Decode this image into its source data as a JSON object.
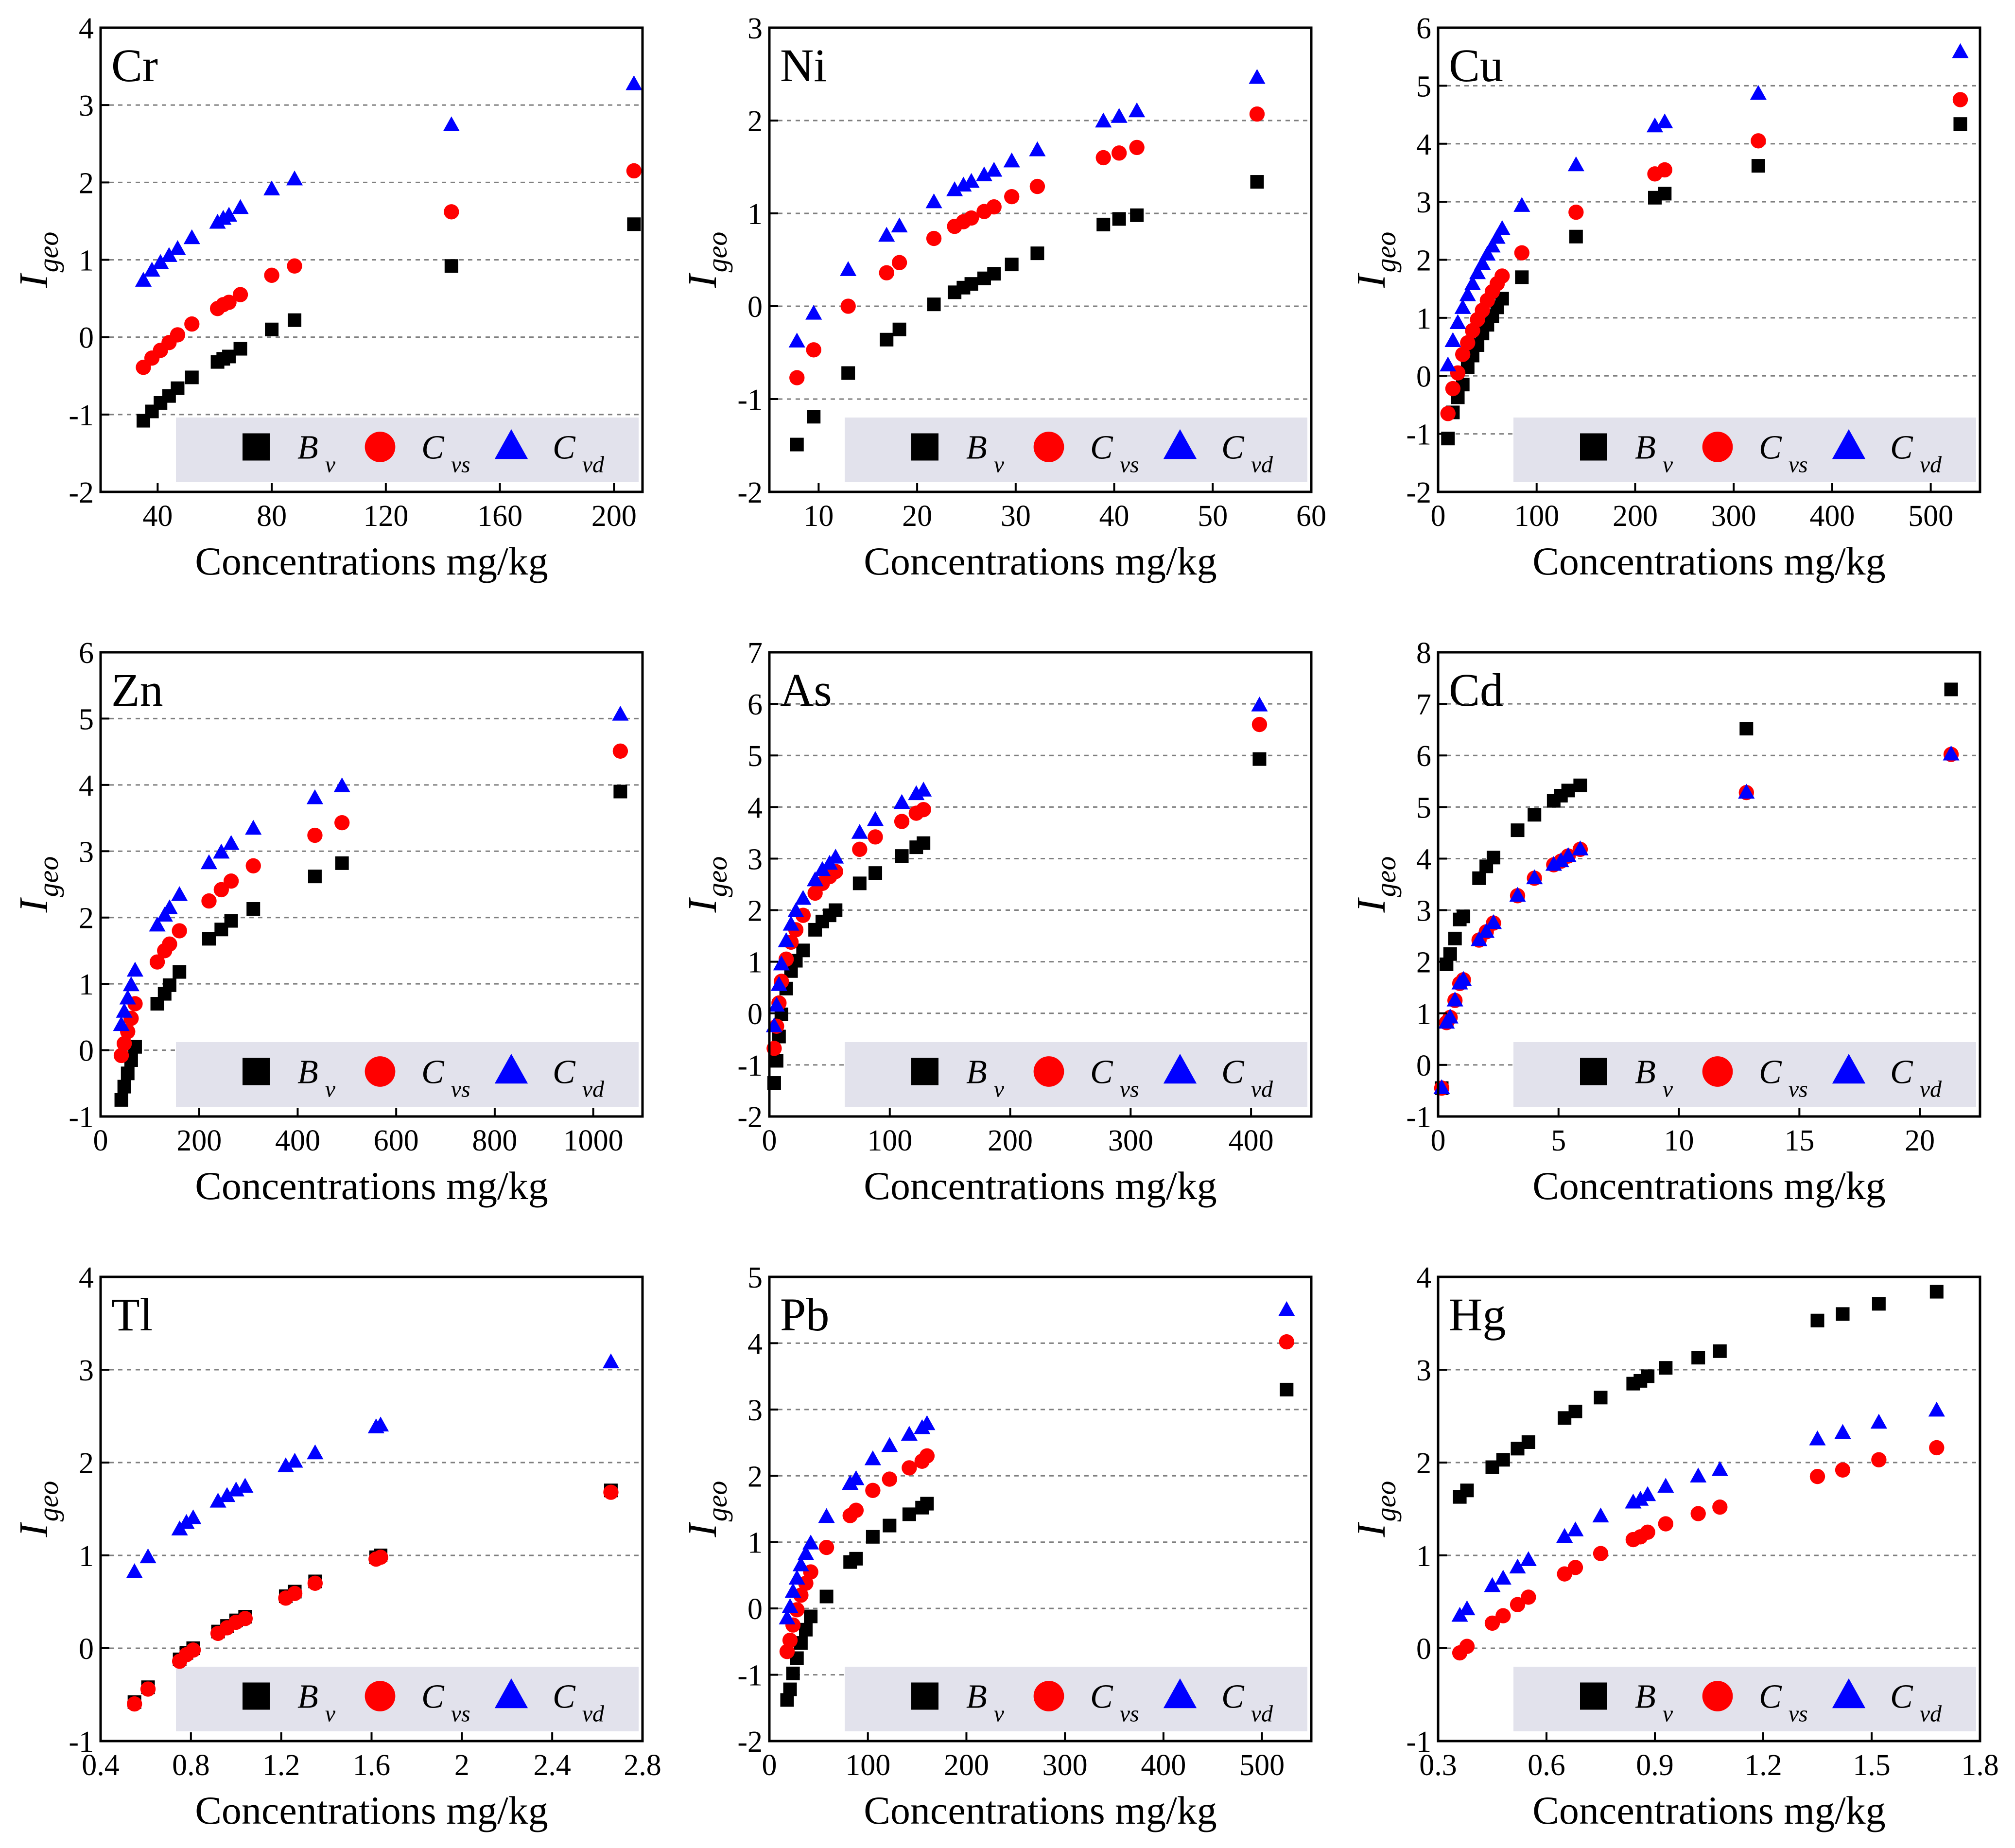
{
  "figure": {
    "xlabel": "Concentrations mg/kg",
    "ylabel": "I",
    "ylabel_sub": "geo"
  },
  "colors": {
    "Bv": "#000000",
    "Cvs": "#ff0000",
    "Cvd": "#0000ff",
    "legend_bg": "#e2e2ec",
    "grid": "#7f7f7f"
  },
  "chart_data": [
    {
      "type": "scatter",
      "title": "Cr",
      "xlabel": "Concentrations mg/kg",
      "ylabel": "I geo",
      "xlim": [
        20,
        210
      ],
      "ylim": [
        -2,
        4
      ],
      "xticks": [
        40,
        80,
        120,
        160,
        200
      ],
      "yticks": [
        -2,
        -1,
        0,
        1,
        2,
        3,
        4
      ],
      "grid": "y",
      "legend": [
        {
          "main": "B",
          "sub": "v"
        },
        {
          "main": "C",
          "sub": "vs"
        },
        {
          "main": "C",
          "sub": "vd"
        }
      ],
      "x": [
        35,
        38,
        41,
        44,
        47,
        52,
        61,
        63,
        65,
        69,
        80,
        88,
        143,
        207
      ],
      "series": [
        {
          "name": "Bv",
          "values": [
            -1.08,
            -0.96,
            -0.85,
            -0.76,
            -0.66,
            -0.52,
            -0.32,
            -0.28,
            -0.25,
            -0.15,
            0.1,
            0.22,
            0.92,
            1.46
          ]
        },
        {
          "name": "Cvs",
          "values": [
            -0.39,
            -0.27,
            -0.17,
            -0.07,
            0.03,
            0.17,
            0.37,
            0.42,
            0.45,
            0.55,
            0.8,
            0.92,
            1.62,
            2.15
          ]
        },
        {
          "name": "Cvd",
          "values": [
            0.73,
            0.86,
            0.96,
            1.05,
            1.14,
            1.28,
            1.48,
            1.53,
            1.57,
            1.67,
            1.91,
            2.04,
            2.74,
            3.27
          ]
        }
      ]
    },
    {
      "type": "scatter",
      "title": "Ni",
      "xlabel": "Concentrations mg/kg",
      "ylabel": "I geo",
      "xlim": [
        5,
        60
      ],
      "ylim": [
        -2,
        3
      ],
      "xticks": [
        10,
        20,
        30,
        40,
        50,
        60
      ],
      "yticks": [
        -2,
        -1,
        0,
        1,
        2,
        3
      ],
      "grid": "y",
      "legend": [
        {
          "main": "B",
          "sub": "v"
        },
        {
          "main": "C",
          "sub": "vs"
        },
        {
          "main": "C",
          "sub": "vd"
        }
      ],
      "x": [
        7.8,
        9.5,
        13,
        16.9,
        18.2,
        21.7,
        23.8,
        24.7,
        25.5,
        26.8,
        27.8,
        29.6,
        32.2,
        38.9,
        40.5,
        42.3,
        54.5
      ],
      "series": [
        {
          "name": "Bv",
          "values": [
            -1.49,
            -1.19,
            -0.72,
            -0.36,
            -0.25,
            0.02,
            0.15,
            0.2,
            0.24,
            0.3,
            0.35,
            0.45,
            0.57,
            0.88,
            0.94,
            0.98,
            1.34
          ]
        },
        {
          "name": "Cvs",
          "values": [
            -0.77,
            -0.47,
            0.0,
            0.36,
            0.47,
            0.73,
            0.86,
            0.91,
            0.95,
            1.02,
            1.07,
            1.18,
            1.29,
            1.6,
            1.65,
            1.71,
            2.07
          ]
        },
        {
          "name": "Cvd",
          "values": [
            -0.38,
            -0.08,
            0.39,
            0.76,
            0.86,
            1.12,
            1.25,
            1.3,
            1.34,
            1.41,
            1.46,
            1.56,
            1.68,
            1.99,
            2.04,
            2.1,
            2.46
          ]
        }
      ]
    },
    {
      "type": "scatter",
      "title": "Cu",
      "xlabel": "Concentrations mg/kg",
      "ylabel": "I geo",
      "xlim": [
        0,
        550
      ],
      "ylim": [
        -2,
        6
      ],
      "xticks": [
        0,
        100,
        200,
        300,
        400,
        500
      ],
      "yticks": [
        -2,
        -1,
        0,
        1,
        2,
        3,
        4,
        5,
        6
      ],
      "grid": "y",
      "legend": [
        {
          "main": "B",
          "sub": "v"
        },
        {
          "main": "C",
          "sub": "vs"
        },
        {
          "main": "C",
          "sub": "vd"
        }
      ],
      "x": [
        10,
        15,
        20,
        25,
        30,
        35,
        40,
        45,
        50,
        55,
        60,
        65,
        85,
        140,
        220,
        230,
        325,
        530
      ],
      "series": [
        {
          "name": "Bv",
          "values": [
            -1.08,
            -0.63,
            -0.37,
            -0.15,
            0.15,
            0.35,
            0.53,
            0.73,
            0.88,
            1.03,
            1.18,
            1.33,
            1.7,
            2.4,
            3.07,
            3.14,
            3.62,
            4.34
          ]
        },
        {
          "name": "Cvs",
          "values": [
            -0.65,
            -0.22,
            0.05,
            0.37,
            0.57,
            0.78,
            0.97,
            1.13,
            1.3,
            1.45,
            1.59,
            1.72,
            2.12,
            2.82,
            3.48,
            3.55,
            4.05,
            4.76
          ]
        },
        {
          "name": "Cvd",
          "values": [
            0.18,
            0.6,
            0.91,
            1.17,
            1.39,
            1.58,
            1.77,
            1.93,
            2.09,
            2.23,
            2.38,
            2.53,
            2.93,
            3.63,
            4.3,
            4.37,
            4.86,
            5.58
          ]
        }
      ]
    },
    {
      "type": "scatter",
      "title": "Zn",
      "xlabel": "Concentrations mg/kg",
      "ylabel": "I geo",
      "xlim": [
        0,
        1100
      ],
      "ylim": [
        -1,
        6
      ],
      "xticks": [
        0,
        200,
        400,
        600,
        800,
        1000
      ],
      "yticks": [
        -1,
        0,
        1,
        2,
        3,
        4,
        5,
        6
      ],
      "grid": "y",
      "legend": [
        {
          "main": "B",
          "sub": "v"
        },
        {
          "main": "C",
          "sub": "vs"
        },
        {
          "main": "C",
          "sub": "vd"
        }
      ],
      "x": [
        42,
        48,
        55,
        62,
        70,
        115,
        130,
        140,
        160,
        220,
        245,
        265,
        310,
        435,
        490,
        1055
      ],
      "series": [
        {
          "name": "Bv",
          "values": [
            -0.75,
            -0.55,
            -0.35,
            -0.15,
            0.05,
            0.7,
            0.85,
            0.98,
            1.18,
            1.68,
            1.82,
            1.95,
            2.13,
            2.62,
            2.82,
            3.9
          ]
        },
        {
          "name": "Cvs",
          "values": [
            -0.08,
            0.1,
            0.28,
            0.48,
            0.7,
            1.33,
            1.5,
            1.6,
            1.8,
            2.25,
            2.42,
            2.55,
            2.78,
            3.24,
            3.43,
            4.51
          ]
        },
        {
          "name": "Cvd",
          "values": [
            0.38,
            0.58,
            0.78,
            0.98,
            1.2,
            1.88,
            2.03,
            2.14,
            2.34,
            2.82,
            2.98,
            3.11,
            3.34,
            3.8,
            3.98,
            5.06
          ]
        }
      ]
    },
    {
      "type": "scatter",
      "title": "As",
      "xlabel": "Concentrations mg/kg",
      "ylabel": "I geo",
      "xlim": [
        0,
        450
      ],
      "ylim": [
        -2,
        7
      ],
      "xticks": [
        0,
        100,
        200,
        300,
        400
      ],
      "yticks": [
        -2,
        -1,
        0,
        1,
        2,
        3,
        4,
        5,
        6,
        7
      ],
      "grid": "y",
      "legend": [
        {
          "main": "B",
          "sub": "v"
        },
        {
          "main": "C",
          "sub": "vs"
        },
        {
          "main": "C",
          "sub": "vd"
        }
      ],
      "x": [
        4,
        6,
        8,
        10,
        14,
        18,
        22,
        28,
        38,
        44,
        50,
        55,
        75,
        88,
        110,
        122,
        128,
        407
      ],
      "series": [
        {
          "name": "Bv",
          "values": [
            -1.35,
            -0.92,
            -0.45,
            -0.02,
            0.48,
            0.82,
            1.02,
            1.22,
            1.62,
            1.78,
            1.9,
            2.0,
            2.52,
            2.72,
            3.05,
            3.22,
            3.3,
            4.93
          ]
        },
        {
          "name": "Cvs",
          "values": [
            -0.68,
            -0.25,
            0.2,
            0.62,
            1.05,
            1.38,
            1.62,
            1.9,
            2.33,
            2.52,
            2.65,
            2.75,
            3.18,
            3.42,
            3.72,
            3.88,
            3.95,
            5.6
          ]
        },
        {
          "name": "Cvd",
          "values": [
            -0.25,
            0.15,
            0.55,
            0.95,
            1.4,
            1.72,
            1.98,
            2.22,
            2.58,
            2.78,
            2.9,
            3.02,
            3.5,
            3.75,
            4.08,
            4.25,
            4.32,
            5.97
          ]
        }
      ]
    },
    {
      "type": "scatter",
      "title": "Cd",
      "xlabel": "Concentrations mg/kg",
      "ylabel": "I geo",
      "xlim": [
        0,
        22.5
      ],
      "ylim": [
        -1,
        8
      ],
      "xticks": [
        0,
        5,
        10,
        15,
        20
      ],
      "yticks": [
        -1,
        0,
        1,
        2,
        3,
        4,
        5,
        6,
        7,
        8
      ],
      "grid": "y",
      "legend": [
        {
          "main": "B",
          "sub": "v"
        },
        {
          "main": "C",
          "sub": "vs"
        },
        {
          "main": "C",
          "sub": "vd"
        }
      ],
      "x": [
        0.15,
        0.35,
        0.5,
        0.7,
        0.9,
        1.05,
        1.7,
        2.0,
        2.3,
        3.3,
        4.0,
        4.8,
        5.1,
        5.4,
        5.9,
        12.8,
        21.3
      ],
      "series": [
        {
          "name": "Bv",
          "values": [
            -0.45,
            1.95,
            2.15,
            2.45,
            2.82,
            2.88,
            3.62,
            3.85,
            4.02,
            4.55,
            4.85,
            5.12,
            5.22,
            5.32,
            5.42,
            6.52,
            7.28
          ]
        },
        {
          "name": "Cvs",
          "values": [
            -0.45,
            0.82,
            0.92,
            1.25,
            1.58,
            1.65,
            2.42,
            2.58,
            2.75,
            3.28,
            3.62,
            3.88,
            3.95,
            4.05,
            4.18,
            5.28,
            6.02
          ]
        },
        {
          "name": "Cvd",
          "values": [
            -0.45,
            0.82,
            0.92,
            1.25,
            1.58,
            1.65,
            2.42,
            2.58,
            2.75,
            3.28,
            3.62,
            3.88,
            3.95,
            4.05,
            4.18,
            5.28,
            6.02
          ]
        }
      ]
    },
    {
      "type": "scatter",
      "title": "Tl",
      "xlabel": "Concentrations mg/kg",
      "ylabel": "I geo",
      "xlim": [
        0.4,
        2.8
      ],
      "ylim": [
        -1,
        4
      ],
      "xticks": [
        0.4,
        0.8,
        1.2,
        1.6,
        2.0,
        2.4,
        2.8
      ],
      "yticks": [
        -1,
        0,
        1,
        2,
        3,
        4
      ],
      "grid": "y",
      "legend": [
        {
          "main": "B",
          "sub": "v"
        },
        {
          "main": "C",
          "sub": "vs"
        },
        {
          "main": "C",
          "sub": "vd"
        }
      ],
      "x": [
        0.55,
        0.61,
        0.75,
        0.78,
        0.81,
        0.92,
        0.96,
        1.0,
        1.04,
        1.22,
        1.26,
        1.35,
        1.62,
        1.64,
        2.66
      ],
      "series": [
        {
          "name": "Bv",
          "values": [
            -0.58,
            -0.42,
            -0.12,
            -0.05,
            0.0,
            0.18,
            0.24,
            0.3,
            0.34,
            0.56,
            0.61,
            0.72,
            0.98,
            1.0,
            1.7
          ]
        },
        {
          "name": "Cvs",
          "values": [
            -0.6,
            -0.44,
            -0.14,
            -0.07,
            -0.02,
            0.16,
            0.22,
            0.28,
            0.32,
            0.54,
            0.59,
            0.7,
            0.96,
            0.98,
            1.68
          ]
        },
        {
          "name": "Cvd",
          "values": [
            0.82,
            0.98,
            1.28,
            1.35,
            1.4,
            1.58,
            1.64,
            1.7,
            1.74,
            1.96,
            2.01,
            2.1,
            2.38,
            2.4,
            3.08
          ]
        }
      ]
    },
    {
      "type": "scatter",
      "title": "Pb",
      "xlabel": "Concentrations mg/kg",
      "ylabel": "I geo",
      "xlim": [
        0,
        550
      ],
      "ylim": [
        -2,
        5
      ],
      "xticks": [
        0,
        100,
        200,
        300,
        400,
        500
      ],
      "yticks": [
        -2,
        -1,
        0,
        1,
        2,
        3,
        4,
        5
      ],
      "grid": "y",
      "legend": [
        {
          "main": "B",
          "sub": "v"
        },
        {
          "main": "C",
          "sub": "vs"
        },
        {
          "main": "C",
          "sub": "vd"
        }
      ],
      "x": [
        18,
        21,
        24,
        28,
        32,
        37,
        42,
        58,
        82,
        88,
        105,
        122,
        142,
        155,
        160,
        525
      ],
      "series": [
        {
          "name": "Bv",
          "values": [
            -1.38,
            -1.22,
            -0.98,
            -0.75,
            -0.52,
            -0.32,
            -0.12,
            0.18,
            0.7,
            0.75,
            1.08,
            1.25,
            1.42,
            1.52,
            1.58,
            3.3
          ]
        },
        {
          "name": "Cvs",
          "values": [
            -0.65,
            -0.48,
            -0.25,
            -0.02,
            0.2,
            0.38,
            0.55,
            0.92,
            1.4,
            1.48,
            1.78,
            1.95,
            2.12,
            2.22,
            2.3,
            4.02
          ]
        },
        {
          "name": "Cvd",
          "values": [
            -0.15,
            0.02,
            0.25,
            0.45,
            0.65,
            0.82,
            0.98,
            1.38,
            1.88,
            1.95,
            2.25,
            2.45,
            2.62,
            2.72,
            2.78,
            4.5
          ]
        }
      ]
    },
    {
      "type": "scatter",
      "title": "Hg",
      "xlabel": "Concentrations mg/kg",
      "ylabel": "I geo",
      "xlim": [
        0.3,
        1.8
      ],
      "ylim": [
        -1,
        4
      ],
      "xticks": [
        0.3,
        0.6,
        0.9,
        1.2,
        1.5,
        1.8
      ],
      "yticks": [
        -1,
        0,
        1,
        2,
        3,
        4
      ],
      "grid": "y",
      "legend": [
        {
          "main": "B",
          "sub": "v"
        },
        {
          "main": "C",
          "sub": "vs"
        },
        {
          "main": "C",
          "sub": "vd"
        }
      ],
      "x": [
        0.36,
        0.38,
        0.45,
        0.48,
        0.52,
        0.55,
        0.65,
        0.68,
        0.75,
        0.84,
        0.86,
        0.88,
        0.93,
        1.02,
        1.08,
        1.35,
        1.42,
        1.52,
        1.68
      ],
      "series": [
        {
          "name": "Bv",
          "values": [
            1.63,
            1.7,
            1.95,
            2.03,
            2.15,
            2.22,
            2.48,
            2.55,
            2.7,
            2.85,
            2.88,
            2.93,
            3.02,
            3.13,
            3.2,
            3.53,
            3.6,
            3.71,
            3.84
          ]
        },
        {
          "name": "Cvs",
          "values": [
            -0.05,
            0.02,
            0.27,
            0.35,
            0.47,
            0.55,
            0.8,
            0.87,
            1.02,
            1.17,
            1.2,
            1.25,
            1.34,
            1.45,
            1.52,
            1.85,
            1.92,
            2.03,
            2.16
          ]
        },
        {
          "name": "Cvd",
          "values": [
            0.35,
            0.42,
            0.67,
            0.75,
            0.87,
            0.95,
            1.2,
            1.27,
            1.42,
            1.57,
            1.6,
            1.65,
            1.74,
            1.85,
            1.92,
            2.25,
            2.32,
            2.43,
            2.56
          ]
        }
      ]
    }
  ]
}
